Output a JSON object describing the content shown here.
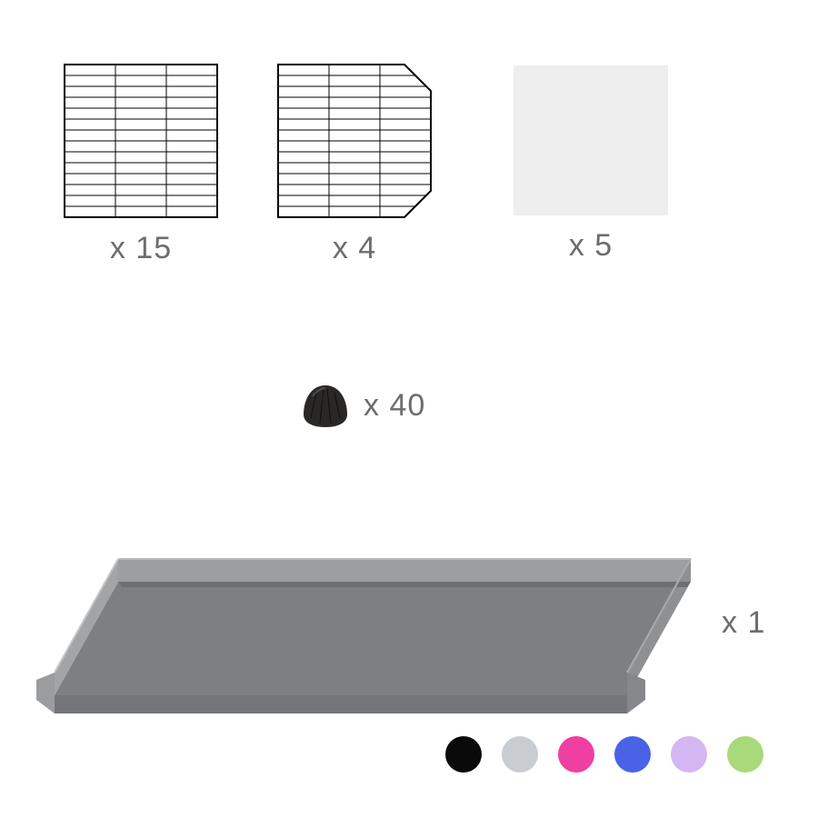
{
  "text_color": "#6d6d6d",
  "items": {
    "grid_full": {
      "qty": "x 15"
    },
    "grid_corner": {
      "qty": "x 4"
    },
    "clear_panel": {
      "qty": "x 5",
      "bg": "#eeeeee"
    },
    "connector": {
      "qty": "x 40",
      "fill": "#2a2826"
    },
    "tray": {
      "qty": "x 1",
      "floor": "#7d8083",
      "rim_left": "#a2a4a6",
      "rim_right": "#8e9092",
      "rim_front": "#737578",
      "rim_back": "#9c9ea0"
    }
  },
  "grid_style": {
    "stroke": "#000000",
    "stroke_width": 1
  },
  "swatches": [
    {
      "name": "black",
      "hex": "#0a0a0a"
    },
    {
      "name": "grey",
      "hex": "#c9ccd0"
    },
    {
      "name": "pink",
      "hex": "#ef3fa0"
    },
    {
      "name": "blue",
      "hex": "#4a63e6"
    },
    {
      "name": "lilac",
      "hex": "#d4b6f2"
    },
    {
      "name": "green",
      "hex": "#a8d97a"
    }
  ]
}
